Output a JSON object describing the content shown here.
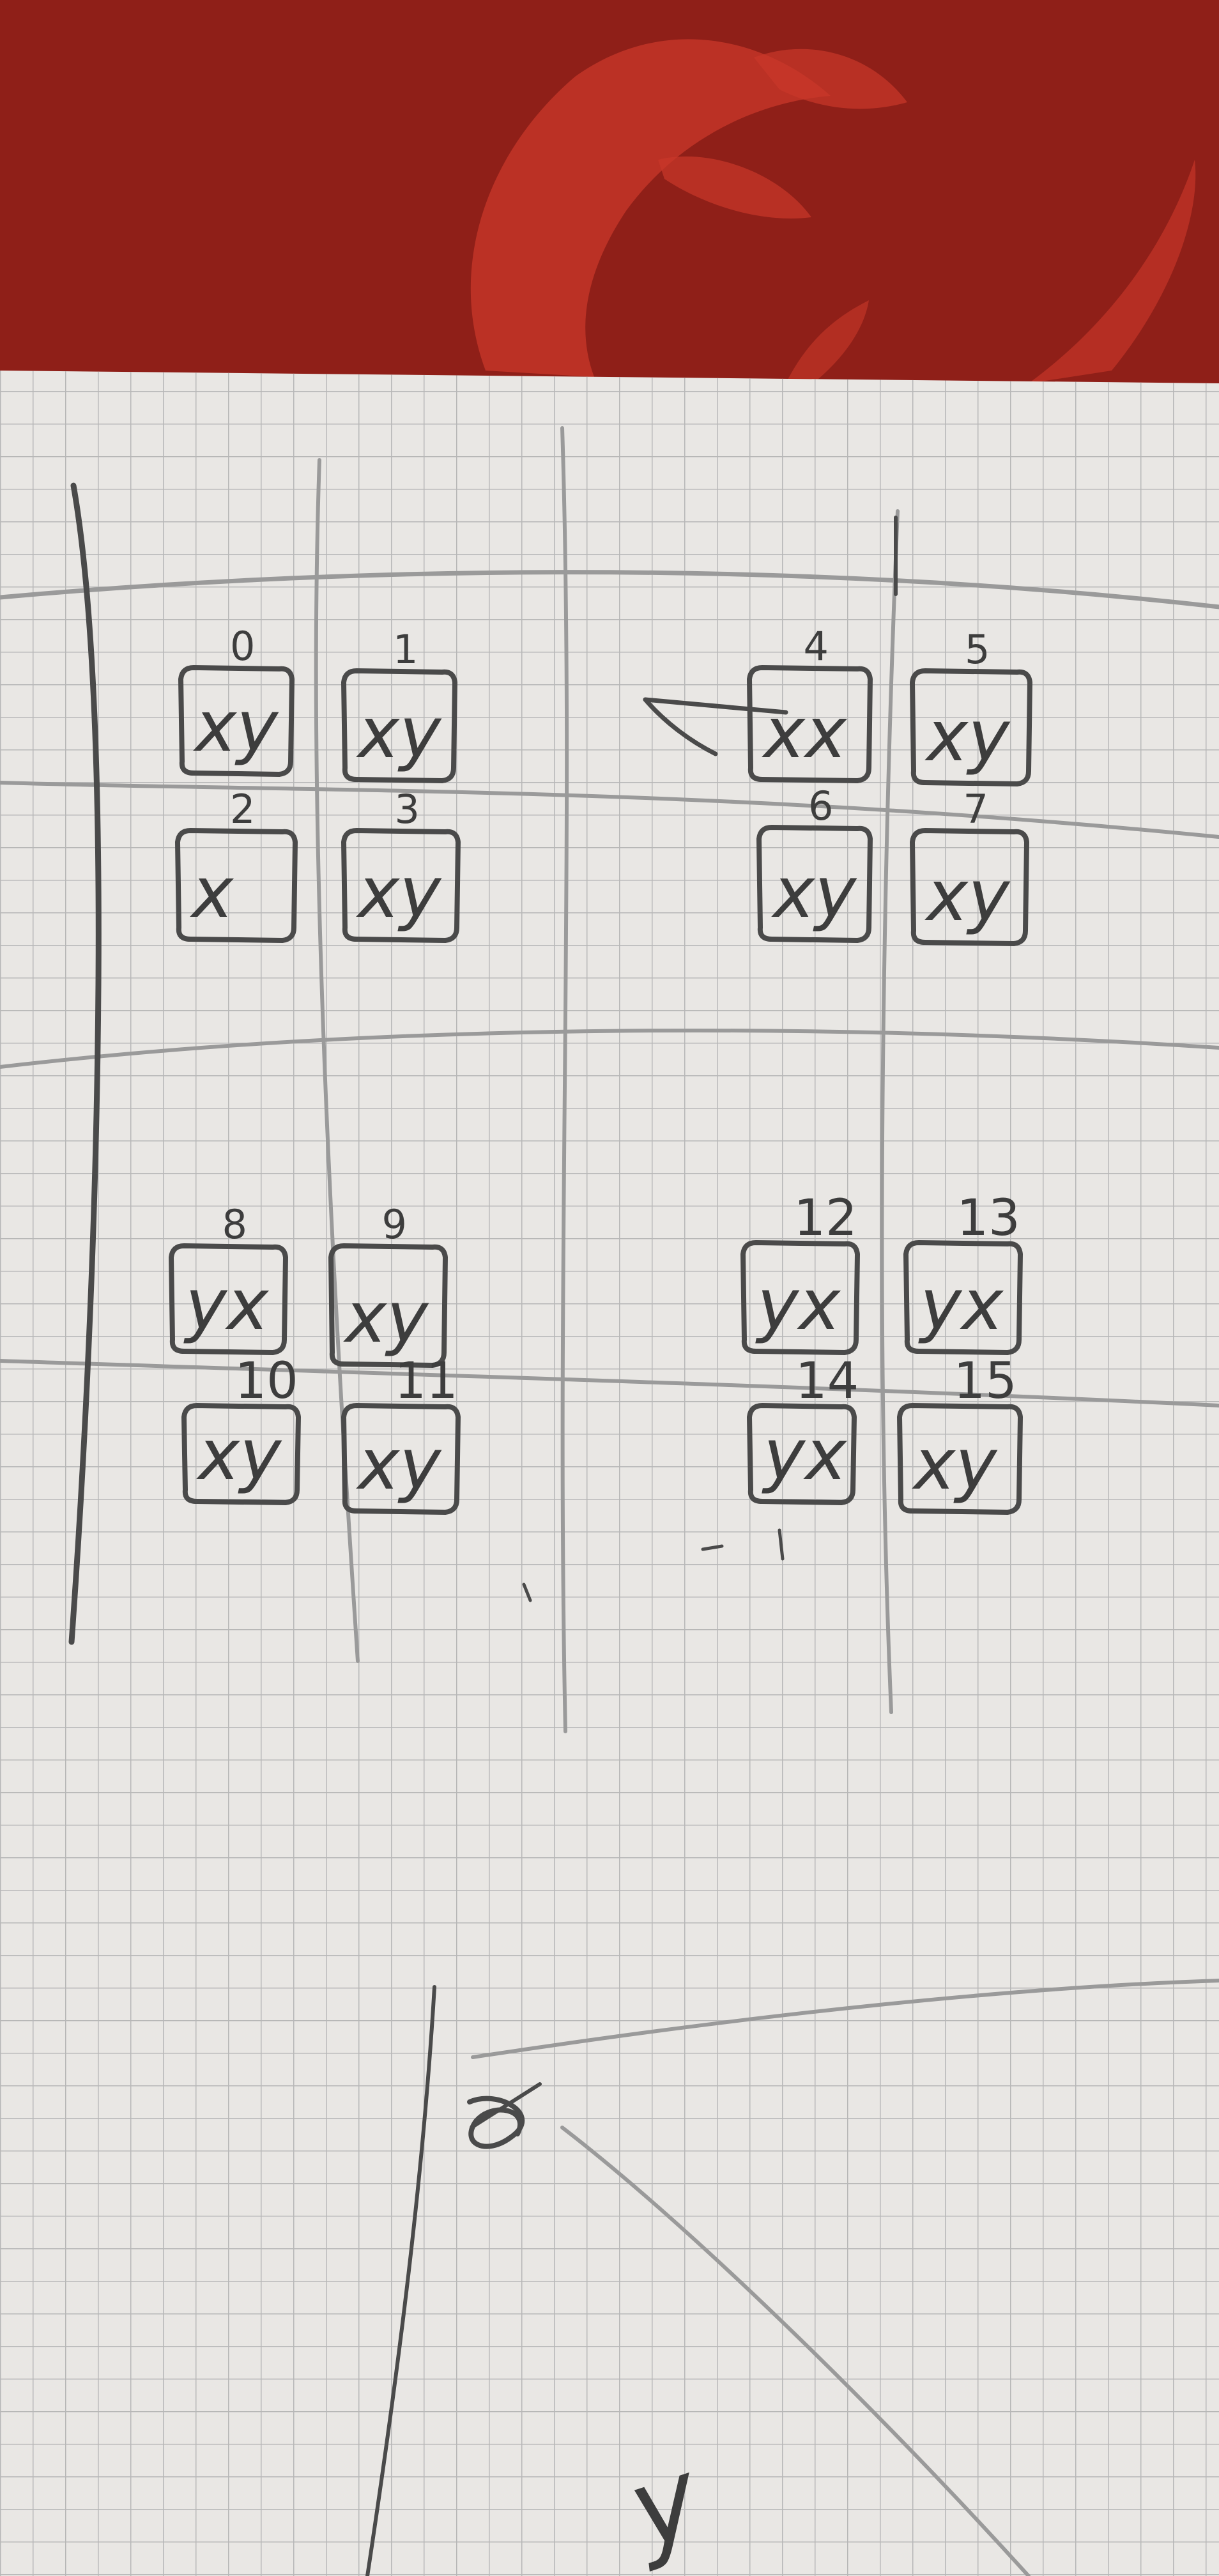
{
  "colors": {
    "tablecloth": "#8f1f18",
    "tablecloth_pattern": "#c9382a",
    "paper": "#e9e7e4",
    "grid_line": "#b7b7b7",
    "pencil": "#4a4a4a",
    "faint_pencil": "#9a9a9a"
  },
  "cells": [
    {
      "label": "0",
      "mark": "xy"
    },
    {
      "label": "1",
      "mark": "xy"
    },
    {
      "label": "2",
      "mark": "x"
    },
    {
      "label": "3",
      "mark": "xy"
    },
    {
      "label": "4",
      "mark": "xx"
    },
    {
      "label": "5",
      "mark": "xy"
    },
    {
      "label": "6",
      "mark": "xy"
    },
    {
      "label": "7",
      "mark": "xy"
    },
    {
      "label": "8",
      "mark": "yx"
    },
    {
      "label": "9",
      "mark": "xy"
    },
    {
      "label": "10",
      "mark": "xy"
    },
    {
      "label": "11",
      "mark": "xy"
    },
    {
      "label": "12",
      "mark": "yx"
    },
    {
      "label": "13",
      "mark": "yx"
    },
    {
      "label": "14",
      "mark": "yx"
    },
    {
      "label": "15",
      "mark": "xy"
    }
  ],
  "bottom_sketch": {
    "axis_label": "y"
  }
}
